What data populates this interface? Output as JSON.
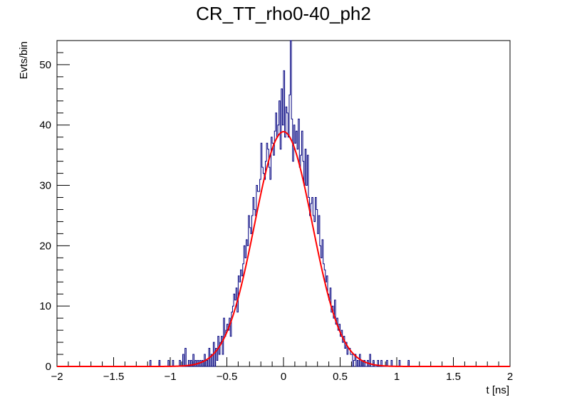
{
  "chart_data": {
    "type": "histogram",
    "title": "CR_TT_rho0-40_ph2",
    "xlabel": "t [ns]",
    "ylabel": "Evts/bin",
    "xlim": [
      -2,
      2
    ],
    "ylim": [
      0,
      54
    ],
    "x_ticks": [
      -2,
      -1.5,
      -1,
      -0.5,
      0,
      0.5,
      1,
      1.5,
      2
    ],
    "x_tick_labels": [
      "−2",
      "−1.5",
      "−1",
      "−0.5",
      "0",
      "0.5",
      "1",
      "1.5",
      "2"
    ],
    "y_ticks": [
      0,
      10,
      20,
      30,
      40,
      50
    ],
    "y_tick_labels": [
      "0",
      "10",
      "20",
      "30",
      "40",
      "50"
    ],
    "bin_width": 0.01,
    "histogram": {
      "color": "#00007f",
      "bin_edges_start": -2,
      "nonzero_bins": [
        [
          -1.18,
          1
        ],
        [
          -1.1,
          1
        ],
        [
          -1.02,
          1
        ],
        [
          -0.98,
          1
        ],
        [
          -0.92,
          1
        ],
        [
          -0.89,
          2
        ],
        [
          -0.87,
          3
        ],
        [
          -0.84,
          1
        ],
        [
          -0.82,
          1
        ],
        [
          -0.8,
          2
        ],
        [
          -0.78,
          1
        ],
        [
          -0.76,
          1
        ],
        [
          -0.74,
          1
        ],
        [
          -0.72,
          1
        ],
        [
          -0.7,
          2
        ],
        [
          -0.68,
          1
        ],
        [
          -0.66,
          3
        ],
        [
          -0.64,
          2
        ],
        [
          -0.62,
          4
        ],
        [
          -0.6,
          3
        ],
        [
          -0.59,
          1
        ],
        [
          -0.58,
          5
        ],
        [
          -0.57,
          2
        ],
        [
          -0.56,
          4
        ],
        [
          -0.55,
          5
        ],
        [
          -0.54,
          2
        ],
        [
          -0.53,
          8
        ],
        [
          -0.52,
          5
        ],
        [
          -0.51,
          6
        ],
        [
          -0.5,
          7
        ],
        [
          -0.49,
          6
        ],
        [
          -0.48,
          8
        ],
        [
          -0.47,
          5
        ],
        [
          -0.46,
          9
        ],
        [
          -0.45,
          10
        ],
        [
          -0.44,
          12
        ],
        [
          -0.43,
          11
        ],
        [
          -0.42,
          13
        ],
        [
          -0.41,
          9
        ],
        [
          -0.4,
          15
        ],
        [
          -0.39,
          14
        ],
        [
          -0.38,
          16
        ],
        [
          -0.37,
          15
        ],
        [
          -0.36,
          17
        ],
        [
          -0.35,
          20
        ],
        [
          -0.34,
          18
        ],
        [
          -0.33,
          21
        ],
        [
          -0.32,
          20
        ],
        [
          -0.31,
          25
        ],
        [
          -0.3,
          23
        ],
        [
          -0.29,
          22
        ],
        [
          -0.28,
          25
        ],
        [
          -0.27,
          28
        ],
        [
          -0.26,
          26
        ],
        [
          -0.25,
          25
        ],
        [
          -0.24,
          30
        ],
        [
          -0.23,
          29
        ],
        [
          -0.22,
          29
        ],
        [
          -0.21,
          31
        ],
        [
          -0.2,
          37
        ],
        [
          -0.19,
          33
        ],
        [
          -0.18,
          32
        ],
        [
          -0.17,
          31
        ],
        [
          -0.16,
          34
        ],
        [
          -0.15,
          37
        ],
        [
          -0.14,
          36
        ],
        [
          -0.13,
          33
        ],
        [
          -0.12,
          31
        ],
        [
          -0.11,
          38
        ],
        [
          -0.1,
          37
        ],
        [
          -0.09,
          35
        ],
        [
          -0.08,
          39
        ],
        [
          -0.07,
          42
        ],
        [
          -0.06,
          38
        ],
        [
          -0.05,
          40
        ],
        [
          -0.04,
          44
        ],
        [
          -0.03,
          36
        ],
        [
          -0.02,
          46
        ],
        [
          -0.01,
          40
        ],
        [
          0.0,
          49
        ],
        [
          0.01,
          38
        ],
        [
          0.02,
          43
        ],
        [
          0.03,
          42
        ],
        [
          0.04,
          38
        ],
        [
          0.05,
          45
        ],
        [
          0.06,
          54
        ],
        [
          0.07,
          41
        ],
        [
          0.08,
          34
        ],
        [
          0.09,
          40
        ],
        [
          0.1,
          37
        ],
        [
          0.11,
          39
        ],
        [
          0.12,
          36
        ],
        [
          0.13,
          41
        ],
        [
          0.14,
          33
        ],
        [
          0.15,
          35
        ],
        [
          0.16,
          39
        ],
        [
          0.17,
          34
        ],
        [
          0.18,
          30
        ],
        [
          0.19,
          36
        ],
        [
          0.2,
          30
        ],
        [
          0.21,
          35
        ],
        [
          0.22,
          28
        ],
        [
          0.23,
          25
        ],
        [
          0.24,
          27
        ],
        [
          0.25,
          28
        ],
        [
          0.26,
          25
        ],
        [
          0.27,
          24
        ],
        [
          0.28,
          28
        ],
        [
          0.29,
          26
        ],
        [
          0.3,
          22
        ],
        [
          0.31,
          25
        ],
        [
          0.32,
          20
        ],
        [
          0.33,
          18
        ],
        [
          0.34,
          21
        ],
        [
          0.35,
          17
        ],
        [
          0.36,
          16
        ],
        [
          0.37,
          14
        ],
        [
          0.38,
          15
        ],
        [
          0.39,
          12
        ],
        [
          0.4,
          11
        ],
        [
          0.41,
          13
        ],
        [
          0.42,
          9
        ],
        [
          0.43,
          10
        ],
        [
          0.44,
          8
        ],
        [
          0.45,
          11
        ],
        [
          0.46,
          7
        ],
        [
          0.47,
          8
        ],
        [
          0.48,
          6
        ],
        [
          0.49,
          7
        ],
        [
          0.5,
          5
        ],
        [
          0.51,
          6
        ],
        [
          0.52,
          4
        ],
        [
          0.53,
          5
        ],
        [
          0.54,
          3
        ],
        [
          0.55,
          4
        ],
        [
          0.56,
          2
        ],
        [
          0.57,
          3
        ],
        [
          0.58,
          3
        ],
        [
          0.59,
          2
        ],
        [
          0.6,
          2
        ],
        [
          0.62,
          1
        ],
        [
          0.63,
          2
        ],
        [
          0.65,
          1
        ],
        [
          0.67,
          2
        ],
        [
          0.69,
          1
        ],
        [
          0.71,
          1
        ],
        [
          0.74,
          1
        ],
        [
          0.76,
          2
        ],
        [
          0.79,
          1
        ],
        [
          0.83,
          1
        ],
        [
          0.86,
          1
        ],
        [
          0.91,
          1
        ],
        [
          0.95,
          1
        ],
        [
          1.02,
          1
        ],
        [
          1.1,
          1
        ]
      ]
    },
    "fit": {
      "type": "gaussian",
      "color": "#ff0000",
      "amplitude": 38.9,
      "mean": 0.0,
      "sigma": 0.255
    }
  }
}
